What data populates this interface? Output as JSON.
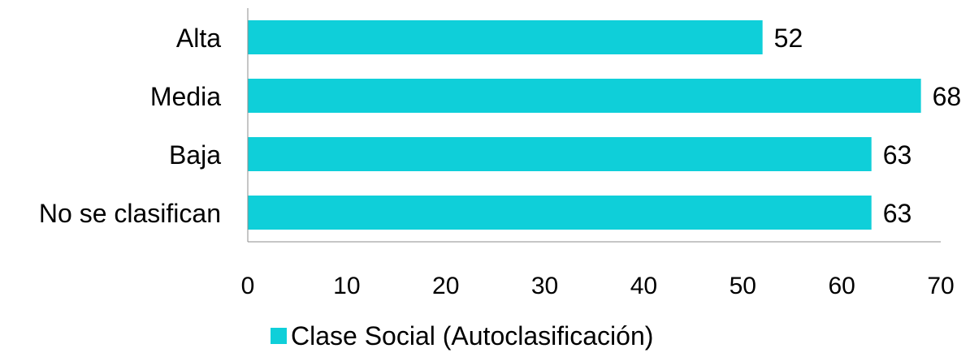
{
  "chart_data": {
    "type": "bar",
    "orientation": "horizontal",
    "title": "",
    "xlabel": "",
    "ylabel": "",
    "categories": [
      "Alta",
      "Media",
      "Baja",
      "No se clasifican"
    ],
    "series": [
      {
        "name": "Clase Social (Autoclasificación)",
        "values": [
          52,
          68,
          63,
          63
        ],
        "color": "#0FCFD9"
      }
    ],
    "data_labels": [
      "52",
      "68",
      "63",
      "63"
    ],
    "xlim": [
      0,
      70
    ],
    "xticks": [
      0,
      10,
      20,
      30,
      40,
      50,
      60,
      70
    ],
    "xtick_labels": [
      "0",
      "10",
      "20",
      "30",
      "40",
      "50",
      "60",
      "70"
    ],
    "grid": false,
    "legend_position": "bottom"
  }
}
